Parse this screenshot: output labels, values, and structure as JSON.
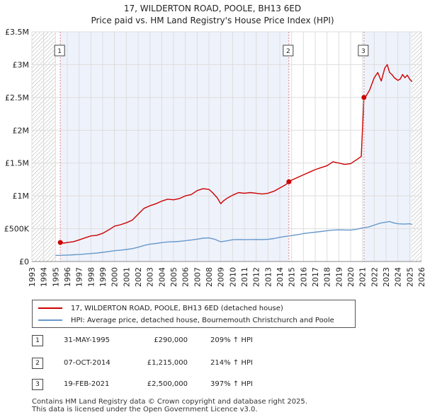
{
  "title": {
    "line1": "17, WILDERTON ROAD, POOLE, BH13 6ED",
    "line2": "Price paid vs. HM Land Registry's House Price Index (HPI)"
  },
  "colors": {
    "property": "#cc0000",
    "hpi": "#6699cc",
    "highlight_band": "#eef2fb",
    "hatch": "#aaaaaa",
    "grid": "#dddddd",
    "vline": "#e08080"
  },
  "chart_data": {
    "type": "line",
    "title": "17, WILDERTON ROAD, POOLE, BH13 6ED",
    "subtitle": "Price paid vs. HM Land Registry's House Price Index (HPI)",
    "xlabel": "",
    "ylabel": "",
    "xlim": [
      1993,
      2026
    ],
    "ylim": [
      0,
      3500000
    ],
    "x_ticks": [
      "1993",
      "1994",
      "1995",
      "1996",
      "1997",
      "1998",
      "1999",
      "2000",
      "2001",
      "2002",
      "2003",
      "2004",
      "2005",
      "2006",
      "2007",
      "2008",
      "2009",
      "2010",
      "2011",
      "2012",
      "2013",
      "2014",
      "2015",
      "2016",
      "2017",
      "2018",
      "2019",
      "2020",
      "2021",
      "2022",
      "2023",
      "2024",
      "2025",
      "2026"
    ],
    "y_ticks": [
      {
        "value": 0,
        "label": "£0"
      },
      {
        "value": 500000,
        "label": "£500K"
      },
      {
        "value": 1000000,
        "label": "£1M"
      },
      {
        "value": 1500000,
        "label": "£1.5M"
      },
      {
        "value": 2000000,
        "label": "£2M"
      },
      {
        "value": 2500000,
        "label": "£2.5M"
      },
      {
        "value": 3000000,
        "label": "£3M"
      },
      {
        "value": 3500000,
        "label": "£3.5M"
      }
    ],
    "grid": true,
    "hatched_ranges": [
      [
        1993,
        1995.0
      ],
      [
        2025.2,
        2026
      ]
    ],
    "highlight_ranges": [
      [
        1995.41,
        2014.77
      ],
      [
        2021.13,
        2025.2
      ]
    ],
    "series": [
      {
        "name": "17, WILDERTON ROAD, POOLE, BH13 6ED (detached house)",
        "color": "#cc0000",
        "x": [
          1995.41,
          1995.7,
          1996.0,
          1996.5,
          1997.0,
          1997.5,
          1998.0,
          1998.5,
          1999.0,
          1999.5,
          2000.0,
          2000.5,
          2001.0,
          2001.5,
          2002.0,
          2002.5,
          2003.0,
          2003.5,
          2004.0,
          2004.5,
          2005.0,
          2005.5,
          2006.0,
          2006.5,
          2007.0,
          2007.5,
          2008.0,
          2008.3,
          2008.7,
          2009.0,
          2009.2,
          2009.5,
          2010.0,
          2010.5,
          2011.0,
          2011.5,
          2012.0,
          2012.5,
          2013.0,
          2013.5,
          2014.0,
          2014.5,
          2014.77,
          2015.0,
          2015.5,
          2016.0,
          2016.5,
          2017.0,
          2017.5,
          2018.0,
          2018.5,
          2019.0,
          2019.5,
          2020.0,
          2020.5,
          2020.9,
          2021.13,
          2021.3,
          2021.6,
          2022.0,
          2022.3,
          2022.6,
          2022.9,
          2023.1,
          2023.3,
          2023.5,
          2023.7,
          2024.0,
          2024.2,
          2024.4,
          2024.6,
          2024.8,
          2025.0,
          2025.2
        ],
        "values": [
          290000,
          280000,
          290000,
          300000,
          330000,
          360000,
          390000,
          400000,
          430000,
          480000,
          540000,
          560000,
          590000,
          630000,
          720000,
          810000,
          850000,
          880000,
          920000,
          950000,
          940000,
          960000,
          1000000,
          1020000,
          1080000,
          1110000,
          1100000,
          1050000,
          970000,
          880000,
          920000,
          960000,
          1010000,
          1050000,
          1040000,
          1050000,
          1040000,
          1030000,
          1040000,
          1070000,
          1120000,
          1170000,
          1215000,
          1240000,
          1280000,
          1320000,
          1360000,
          1400000,
          1430000,
          1460000,
          1520000,
          1500000,
          1480000,
          1490000,
          1550000,
          1600000,
          2500000,
          2520000,
          2610000,
          2800000,
          2880000,
          2750000,
          2950000,
          3000000,
          2880000,
          2850000,
          2800000,
          2760000,
          2780000,
          2850000,
          2800000,
          2840000,
          2780000,
          2740000
        ]
      },
      {
        "name": "HPI: Average price, detached house, Bournemouth Christchurch and Poole",
        "color": "#6699cc",
        "x": [
          1995.0,
          1995.5,
          1996.0,
          1996.5,
          1997.0,
          1997.5,
          1998.0,
          1998.5,
          1999.0,
          1999.5,
          2000.0,
          2000.5,
          2001.0,
          2001.5,
          2002.0,
          2002.5,
          2003.0,
          2003.5,
          2004.0,
          2004.5,
          2005.0,
          2005.5,
          2006.0,
          2006.5,
          2007.0,
          2007.5,
          2008.0,
          2008.5,
          2009.0,
          2009.5,
          2010.0,
          2010.5,
          2011.0,
          2011.5,
          2012.0,
          2012.5,
          2013.0,
          2013.5,
          2014.0,
          2014.5,
          2015.0,
          2015.5,
          2016.0,
          2016.5,
          2017.0,
          2017.5,
          2018.0,
          2018.5,
          2019.0,
          2019.5,
          2020.0,
          2020.5,
          2021.0,
          2021.5,
          2022.0,
          2022.5,
          2023.0,
          2023.3,
          2023.6,
          2024.0,
          2024.5,
          2025.0,
          2025.2
        ],
        "values": [
          93000,
          95000,
          98000,
          102000,
          107000,
          114000,
          122000,
          128000,
          140000,
          152000,
          165000,
          173000,
          183000,
          196000,
          218000,
          245000,
          265000,
          275000,
          288000,
          298000,
          302000,
          307000,
          317000,
          327000,
          340000,
          355000,
          360000,
          338000,
          300000,
          315000,
          332000,
          335000,
          333000,
          335000,
          336000,
          334000,
          338000,
          350000,
          368000,
          383000,
          395000,
          408000,
          425000,
          437000,
          447000,
          458000,
          470000,
          478000,
          482000,
          480000,
          478000,
          492000,
          510000,
          525000,
          555000,
          585000,
          600000,
          610000,
          590000,
          575000,
          570000,
          575000,
          565000
        ]
      }
    ],
    "sale_markers": [
      {
        "label": "1",
        "x": 1995.41,
        "value": 290000
      },
      {
        "label": "2",
        "x": 2014.77,
        "value": 1215000
      },
      {
        "label": "3",
        "x": 2021.13,
        "value": 2500000
      }
    ]
  },
  "legend": {
    "items": [
      {
        "label": "17, WILDERTON ROAD, POOLE, BH13 6ED (detached house)",
        "color": "#cc0000"
      },
      {
        "label": "HPI: Average price, detached house, Bournemouth Christchurch and Poole",
        "color": "#6699cc"
      }
    ]
  },
  "transactions": [
    {
      "num": "1",
      "date": "31-MAY-1995",
      "price": "£290,000",
      "hpi": "209% ↑ HPI"
    },
    {
      "num": "2",
      "date": "07-OCT-2014",
      "price": "£1,215,000",
      "hpi": "214% ↑ HPI"
    },
    {
      "num": "3",
      "date": "19-FEB-2021",
      "price": "£2,500,000",
      "hpi": "397% ↑ HPI"
    }
  ],
  "footer": {
    "line1": "Contains HM Land Registry data © Crown copyright and database right 2025.",
    "line2": "This data is licensed under the Open Government Licence v3.0."
  }
}
